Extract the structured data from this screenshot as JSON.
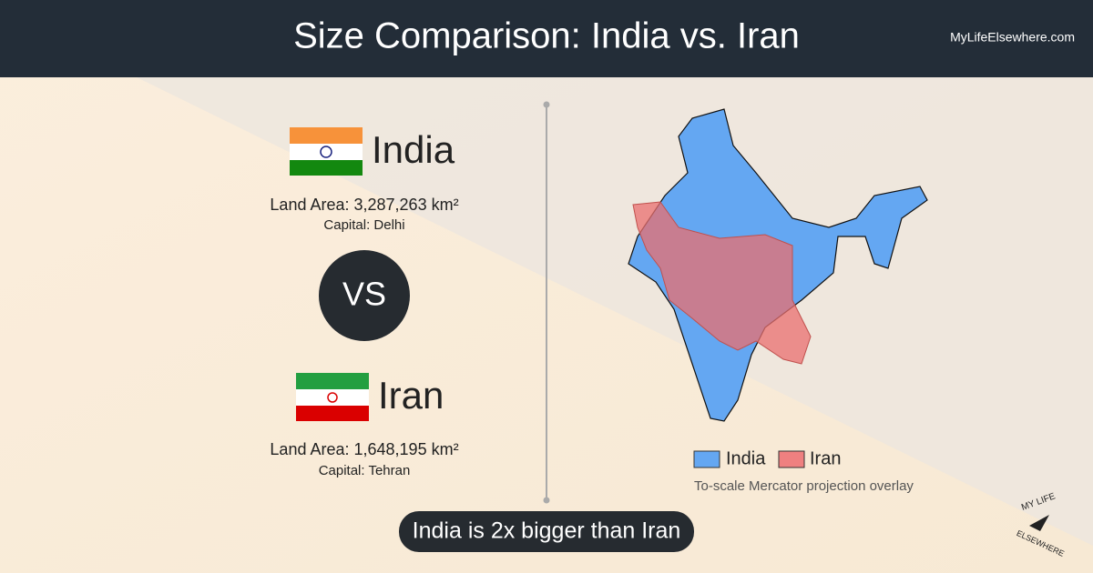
{
  "header": {
    "title": "Size Comparison: India vs. Iran",
    "site": "MyLifeElsewhere.com"
  },
  "countries": [
    {
      "name": "India",
      "land_area": "Land Area: 3,287,263 km²",
      "capital": "Capital: Delhi"
    },
    {
      "name": "Iran",
      "land_area": "Land Area: 1,648,195 km²",
      "capital": "Capital: Tehran"
    }
  ],
  "versus": "VS",
  "summary": "India is 2x bigger than Iran",
  "legend": {
    "items": [
      "India",
      "Iran"
    ],
    "note": "To-scale Mercator projection overlay"
  },
  "logo": {
    "top": "MY LIFE",
    "bottom": "ELSEWHERE"
  }
}
